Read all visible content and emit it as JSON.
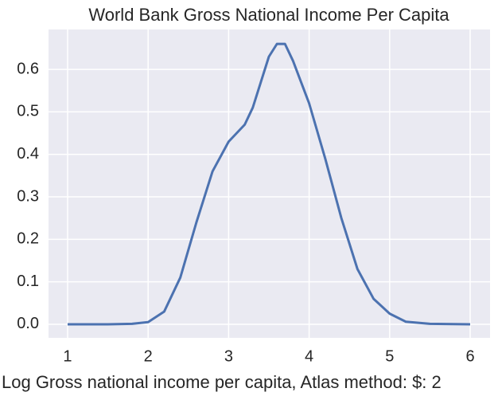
{
  "chart_data": {
    "type": "line",
    "title": "World Bank Gross National Income Per Capita",
    "xlabel": "Log Gross national income per capita, Atlas method: $: 2",
    "x": [
      1.0,
      1.5,
      1.8,
      2.0,
      2.2,
      2.4,
      2.6,
      2.8,
      3.0,
      3.2,
      3.3,
      3.4,
      3.5,
      3.6,
      3.7,
      3.8,
      3.9,
      4.0,
      4.2,
      4.4,
      4.6,
      4.8,
      5.0,
      5.2,
      5.5,
      6.0
    ],
    "series": [
      {
        "color": "#4c72b0",
        "values": [
          0,
          0,
          0.001,
          0.005,
          0.03,
          0.11,
          0.24,
          0.36,
          0.43,
          0.47,
          0.51,
          0.57,
          0.63,
          0.66,
          0.66,
          0.62,
          0.57,
          0.52,
          0.39,
          0.25,
          0.13,
          0.06,
          0.025,
          0.006,
          0.001,
          0
        ]
      }
    ],
    "xlim": [
      0.763,
      6.247
    ],
    "xticks": [
      1,
      2,
      3,
      4,
      5,
      6
    ],
    "ylim": [
      -0.032,
      0.694
    ],
    "yticks": [
      {
        "value": 0,
        "label": "0.0"
      },
      0.1,
      0.2,
      0.3,
      0.4,
      0.5,
      0.6
    ],
    "grid": true,
    "background": "#eaeaf2"
  }
}
